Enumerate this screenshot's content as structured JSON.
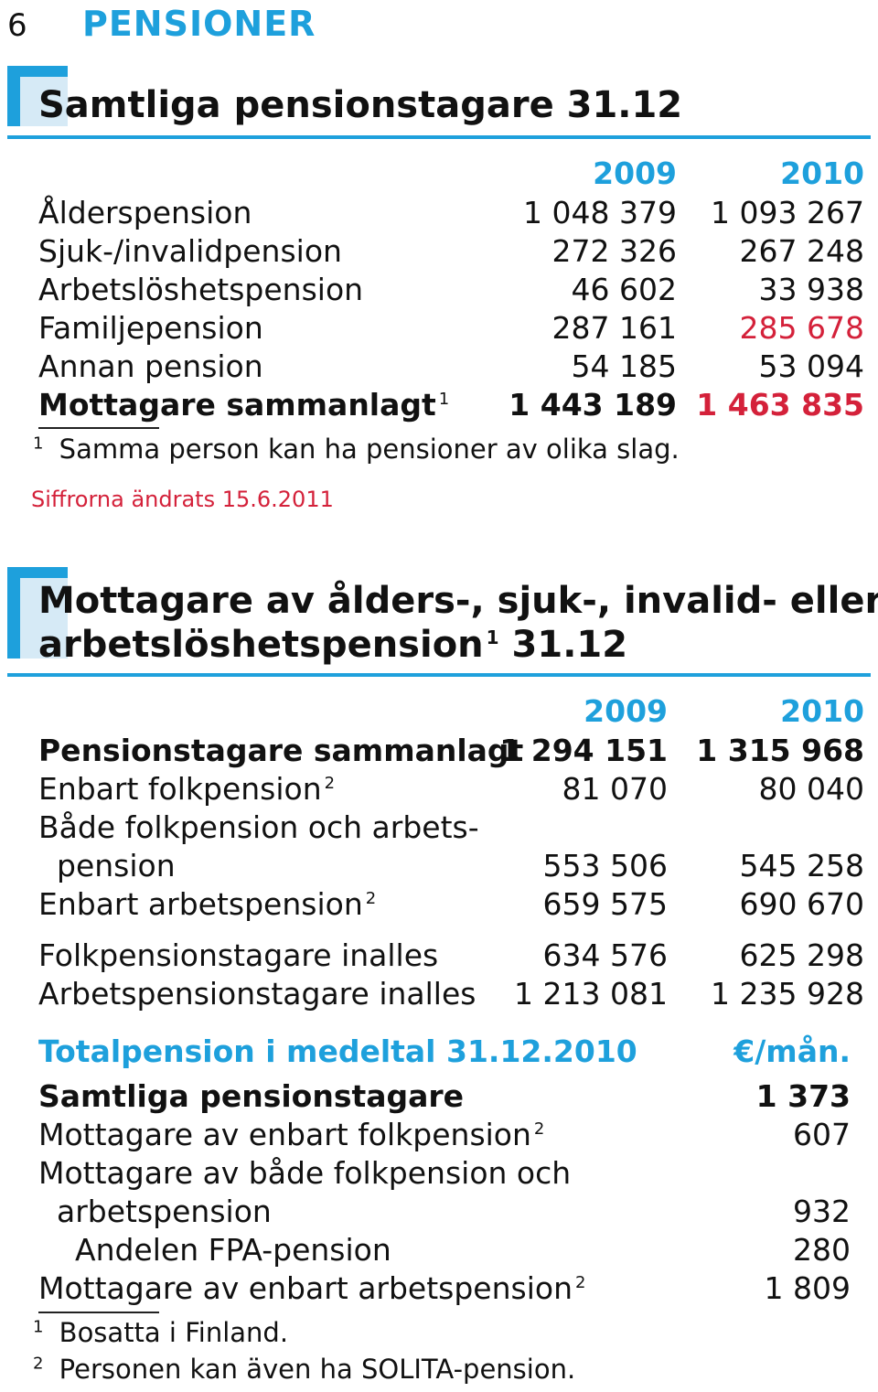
{
  "page": {
    "number": "6",
    "title": "PENSIONER"
  },
  "section1": {
    "title": "Samtliga pensionstagare 31.12",
    "col_2009": "2009",
    "col_2010": "2010",
    "rows": [
      {
        "label": "Ålderspension",
        "v2009": "1 048 379",
        "v2010": "1 093 267"
      },
      {
        "label": "Sjuk-/invalidpension",
        "v2009": "272 326",
        "v2010": "267 248"
      },
      {
        "label": "Arbetslöshetspension",
        "v2009": "46 602",
        "v2010": "33 938"
      },
      {
        "label": "Familjepension",
        "v2009": "287 161",
        "v2010": "285 678"
      },
      {
        "label": "Annan pension",
        "v2009": "54 185",
        "v2010": "53 094"
      }
    ],
    "total": {
      "label": "Mottagare sammanlagt",
      "sup": "1",
      "v2009": "1 443 189",
      "v2010": "1 463 835"
    },
    "footnote_num": "1",
    "footnote": "Samma person kan ha pensioner av olika slag.",
    "change_note": "Siffrorna ändrats 15.6.2011",
    "red_color": "#d4213a"
  },
  "section2": {
    "title_line1": "Mottagare av ålders-, sjuk-, invalid- eller",
    "title_line2": "arbetslöshetspension",
    "title_sup": "1",
    "title_suffix": "31.12",
    "col_2009": "2009",
    "col_2010": "2010",
    "total": {
      "label": "Pensionstagare sammanlagt",
      "v2009": "1 294 151",
      "v2010": "1 315 968"
    },
    "r1": {
      "label": "Enbart folkpension",
      "sup": "2",
      "v2009": "81 070",
      "v2010": "80 040"
    },
    "r2": {
      "label_line1": "Både folkpension och arbets-",
      "label_line2": "pension",
      "v2009": "553 506",
      "v2010": "545 258"
    },
    "r3": {
      "label": "Enbart arbetspension",
      "sup": "2",
      "v2009": "659 575",
      "v2010": "690 670"
    },
    "r4": {
      "label": "Folkpensionstagare inalles",
      "v2009": "634 576",
      "v2010": "625 298"
    },
    "r5": {
      "label": "Arbetspensionstagare inalles",
      "v2009": "1 213 081",
      "v2010": "1 235 928"
    }
  },
  "section3": {
    "title": "Totalpension i medeltal 31.12.2010",
    "unit": "€/mån.",
    "total": {
      "label": "Samtliga pensionstagare",
      "value": "1 373"
    },
    "r1": {
      "label": "Mottagare av enbart folkpension",
      "sup": "2",
      "value": "607"
    },
    "r2": {
      "label_line1": "Mottagare av både folkpension och",
      "label_line2": "arbetspension",
      "value": "932"
    },
    "r3": {
      "label": "Andelen FPA-pension",
      "value": "280"
    },
    "r4": {
      "label": "Mottagare av enbart arbetspension",
      "sup": "2",
      "value": "1 809"
    }
  },
  "footnotes": [
    {
      "num": "1",
      "text": "Bosatta i Finland."
    },
    {
      "num": "2",
      "text": "Personen kan även ha SOLITA-pension."
    }
  ],
  "accent_color": "#1ea0dc"
}
